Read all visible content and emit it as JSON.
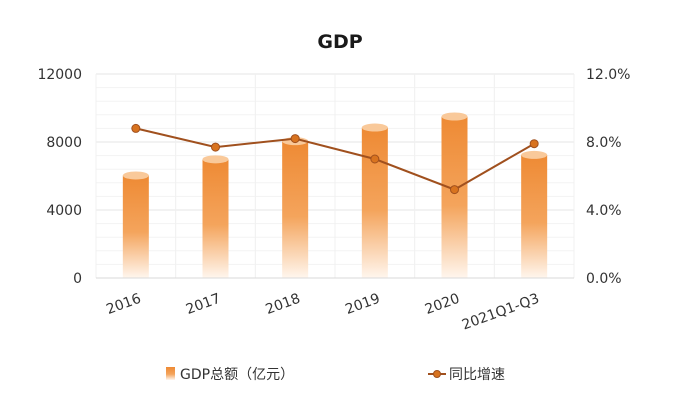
{
  "chart_data": {
    "type": "bar",
    "title": "GDP",
    "categories": [
      "2016",
      "2017",
      "2018",
      "2019",
      "2020",
      "2021Q1-Q3"
    ],
    "series": [
      {
        "name": "GDP总额（亿元）",
        "type": "bar",
        "axis": "left",
        "values": [
          6030,
          6980,
          8050,
          8850,
          9500,
          7240
        ]
      },
      {
        "name": "同比增速",
        "type": "line",
        "axis": "right",
        "values": [
          8.8,
          7.7,
          8.2,
          7.0,
          5.2,
          7.9
        ]
      }
    ],
    "y_left": {
      "min": 0,
      "max": 12000,
      "ticks": [
        "0",
        "4000",
        "8000",
        "12000"
      ],
      "tick_values": [
        0,
        4000,
        8000,
        12000
      ]
    },
    "y_right": {
      "min": 0,
      "max": 12,
      "ticks": [
        "0.0%",
        "4.0%",
        "8.0%",
        "12.0%"
      ],
      "tick_values": [
        0,
        4,
        8,
        12
      ]
    },
    "grid": true,
    "legend_position": "bottom",
    "colors": {
      "bar": "#f0913a",
      "bar_top": "#f9c99a",
      "line": "#a0501e",
      "marker": "#d8731f"
    }
  }
}
